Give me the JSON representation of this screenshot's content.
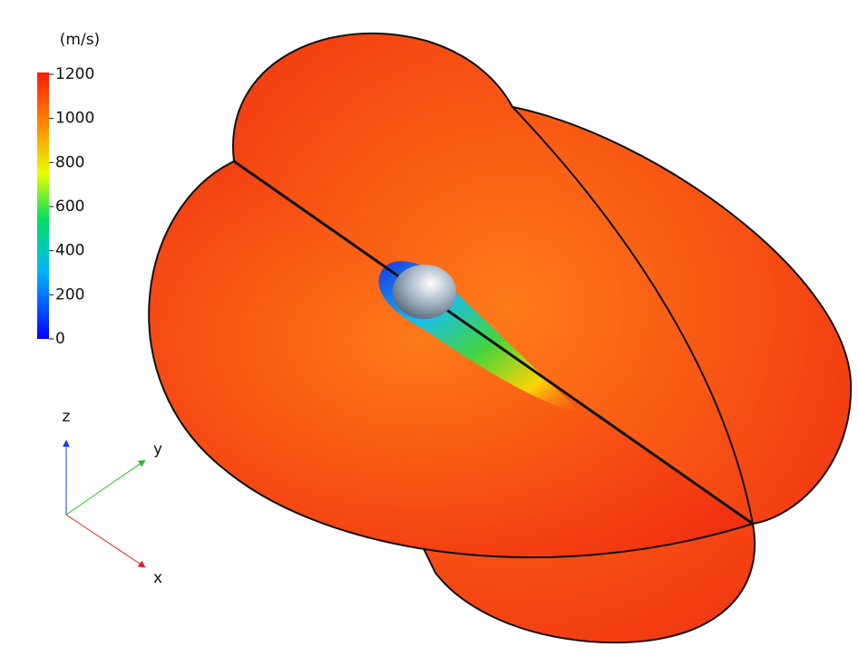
{
  "colorbar": {
    "unit": "(m/s)",
    "lim": [
      0,
      1200
    ],
    "ticks": [
      0,
      200,
      400,
      600,
      800,
      1000,
      1200
    ]
  },
  "axes": {
    "z": "z",
    "y": "y",
    "x": "x"
  }
}
